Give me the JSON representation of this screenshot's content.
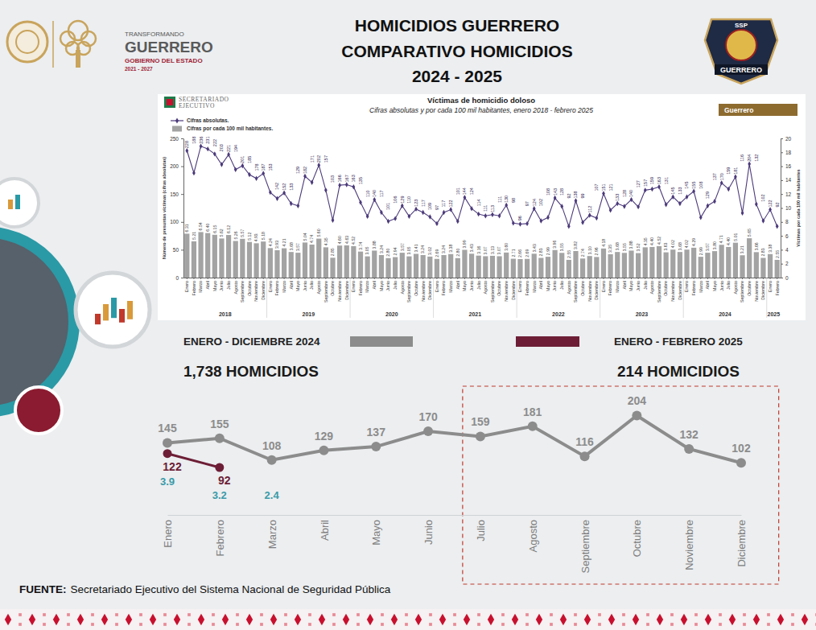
{
  "header": {
    "title_lines": [
      "HOMICIDIOS GUERRERO",
      "COMPARATIVO HOMICIDIOS",
      "2024 - 2025"
    ],
    "logo_left": [
      "TRANSFORMANDO",
      "GUERRERO",
      "GOBIERNO DEL ESTADO",
      "2021 - 2027"
    ],
    "logo_right": [
      "SSP",
      "GUERRERO"
    ]
  },
  "chart_data": [
    {
      "type": "line",
      "categories": [
        "Enero",
        "Febrero",
        "Marzo",
        "Abril",
        "Mayo",
        "Junio",
        "Julio",
        "Agosto",
        "Septiembre",
        "Octubre",
        "Noviembre",
        "Diciembre"
      ],
      "series": [
        {
          "name": "ENERO - DICIEMBRE 2024",
          "color": "#8c8c8c",
          "marker": "circle",
          "values": [
            145,
            155,
            108,
            129,
            137,
            170,
            159,
            181,
            116,
            204,
            132,
            102
          ],
          "total_label": "1,738 HOMICIDIOS"
        },
        {
          "name": "ENERO - FEBRERO 2025",
          "color": "#6d1e36",
          "marker": "circle",
          "values": [
            122,
            92,
            null,
            null,
            null,
            null,
            null,
            null,
            null,
            null,
            null,
            null
          ],
          "total_label": "214 HOMICIDIOS"
        }
      ],
      "annotations": [
        {
          "category": "Enero",
          "value": 3.9
        },
        {
          "category": "Febrero",
          "value": 3.2
        },
        {
          "category": "Marzo",
          "value": 2.4
        }
      ],
      "highlight": [
        "Julio",
        "Diciembre"
      ],
      "ylim": [
        0,
        250
      ],
      "tick_labels": "x",
      "data_labels": true,
      "legend": "top"
    },
    {
      "type": "bar",
      "title": "Víctimas de homicidio doloso",
      "subtitle": "Cifras absolutas y por cada 100 mil habitantes, enero 2018 - febrero 2025",
      "source_logo": [
        "SECRETARIADO",
        "EJECUTIVO"
      ],
      "tab_label": "Guerrero",
      "ylabel": "Número de presuntas víctimas (cifras absolutas)",
      "y2label": "Víctimas por cada 100 mil habitantes",
      "categories": [
        "Enero",
        "Febrero",
        "Marzo",
        "Abril",
        "Mayo",
        "Junio",
        "Julio",
        "Agosto",
        "Septiembre",
        "Octubre",
        "Noviembre",
        "Diciembre",
        "Enero",
        "Febrero",
        "Marzo",
        "Abril",
        "Mayo",
        "Junio",
        "Julio",
        "Agosto",
        "Septiembre",
        "Octubre",
        "Noviembre",
        "Diciembre",
        "Enero",
        "Febrero",
        "Marzo",
        "Abril",
        "Mayo",
        "Junio",
        "Julio",
        "Agosto",
        "Septiembre",
        "Octubre",
        "Noviembre",
        "Diciembre",
        "Enero",
        "Febrero",
        "Marzo",
        "Abril",
        "Mayo",
        "Junio",
        "Julio",
        "Agosto",
        "Septiembre",
        "Octubre",
        "Noviembre",
        "Diciembre",
        "Enero",
        "Febrero",
        "Marzo",
        "Abril",
        "Mayo",
        "Junio",
        "Julio",
        "Agosto",
        "Septiembre",
        "Octubre",
        "Noviembre",
        "Diciembre",
        "Enero",
        "Febrero",
        "Marzo",
        "Abril",
        "Mayo",
        "Junio",
        "Julio",
        "Agosto",
        "Septiembre",
        "Octubre",
        "Noviembre",
        "Diciembre",
        "Enero",
        "Febrero",
        "Marzo",
        "Abril",
        "Mayo",
        "Junio",
        "Julio",
        "Agosto",
        "Septiembre",
        "Octubre",
        "Noviembre",
        "Diciembre",
        "Enero",
        "Febrero"
      ],
      "category_years": [
        "2018",
        "2018",
        "2018",
        "2018",
        "2018",
        "2018",
        "2018",
        "2018",
        "2018",
        "2018",
        "2018",
        "2018",
        "2019",
        "2019",
        "2019",
        "2019",
        "2019",
        "2019",
        "2019",
        "2019",
        "2019",
        "2019",
        "2019",
        "2019",
        "2020",
        "2020",
        "2020",
        "2020",
        "2020",
        "2020",
        "2020",
        "2020",
        "2020",
        "2020",
        "2020",
        "2020",
        "2021",
        "2021",
        "2021",
        "2021",
        "2021",
        "2021",
        "2021",
        "2021",
        "2021",
        "2021",
        "2021",
        "2021",
        "2022",
        "2022",
        "2022",
        "2022",
        "2022",
        "2022",
        "2022",
        "2022",
        "2022",
        "2022",
        "2022",
        "2022",
        "2023",
        "2023",
        "2023",
        "2023",
        "2023",
        "2023",
        "2023",
        "2023",
        "2023",
        "2023",
        "2023",
        "2023",
        "2024",
        "2024",
        "2024",
        "2024",
        "2024",
        "2024",
        "2024",
        "2024",
        "2024",
        "2024",
        "2024",
        "2024",
        "2025",
        "2025"
      ],
      "series": [
        {
          "name": "Cifras por cada 100 mil habitantes.",
          "type": "bar",
          "axis": "y2",
          "color": "#a3a3a3",
          "values": [
            6.31,
            5.21,
            6.54,
            6.4,
            6.15,
            5.62,
            6.12,
            5.26,
            5.57,
            5.12,
            4.93,
            5.18,
            4.24,
            3.93,
            4.21,
            3.68,
            3.57,
            5.04,
            4.74,
            5.6,
            4.35,
            2.85,
            4.6,
            4.63,
            4.52,
            3.74,
            3.05,
            3.88,
            3.24,
            2.8,
            2.94,
            3.57,
            3.05,
            3.41,
            3.24,
            3.02,
            2.69,
            3.24,
            3.38,
            2.8,
            3.99,
            3.43,
            3.16,
            3.07,
            3.13,
            3.07,
            3.6,
            2.71,
            2.66,
            2.69,
            3.43,
            2.83,
            2.99,
            3.96,
            3.55,
            2.55,
            3.82,
            2.74,
            3.1,
            2.96,
            4.18,
            3.35,
            3.68,
            3.55,
            3.88,
            3.52,
            4.35,
            4.4,
            4.52,
            3.63,
            4.02,
            3.68,
            4.02,
            4.29,
            2.99,
            3.57,
            3.8,
            4.71,
            4.4,
            5.01,
            3.21,
            5.65,
            3.66,
            2.83,
            3.38,
            2.55
          ],
          "value_labels": [
            "6.31",
            "5.21",
            "6.54",
            "6.40",
            "6.15",
            "5.62",
            "6.12",
            "5.26",
            "5.57",
            "5.12",
            "4.93",
            "5.18",
            "4.24",
            "3.93",
            "4.21",
            "3.68",
            "3.57",
            "5.04",
            "4.74",
            "5.60",
            "4.35",
            "2.85",
            "4.60",
            "4.63",
            "4.52",
            "3.74",
            "3.05",
            "3.88",
            "3.24",
            "2.80",
            "2.94",
            "3.57",
            "3.05",
            "3.41",
            "3.24",
            "3.02",
            "2.69",
            "3.24",
            "3.38",
            "2.80",
            "3.99",
            "3.43",
            "3.16",
            "3.07",
            "3.13",
            "3.07",
            "3.60",
            "2.71",
            "2.66",
            "2.69",
            "3.43",
            "2.83",
            "2.99",
            "3.96",
            "3.55",
            "2.55",
            "3.82",
            "2.74",
            "3.10",
            "2.96",
            "4.18",
            "3.35",
            "3.68",
            "3.55",
            "3.88",
            "3.52",
            "4.35",
            "4.40",
            "4.52",
            "3.63",
            "4.02",
            "3.68",
            "4.02",
            "4.29",
            "2.99",
            "3.57",
            "3.80",
            "4.71",
            "4.40",
            "5.01",
            "3.21",
            "5.65",
            "3.66",
            "2.83",
            "3.38",
            "2.55"
          ]
        },
        {
          "name": "Cifras absolutas.",
          "type": "line",
          "color": "#4b3a7a",
          "marker": "diamond",
          "values": [
            228,
            188,
            236,
            231,
            222,
            203,
            221,
            194,
            201,
            185,
            178,
            187,
            153,
            142,
            152,
            133,
            129,
            182,
            171,
            202,
            157,
            103,
            166,
            167,
            163,
            135,
            110,
            140,
            117,
            101,
            106,
            129,
            110,
            123,
            117,
            109,
            97,
            117,
            122,
            101,
            144,
            124,
            114,
            111,
            113,
            111,
            130,
            98,
            96,
            97,
            124,
            102,
            108,
            143,
            128,
            92,
            138,
            99,
            112,
            107,
            151,
            121,
            133,
            128,
            140,
            127,
            157,
            159,
            163,
            131,
            145,
            133,
            145,
            155,
            108,
            129,
            137,
            170,
            159,
            181,
            116,
            204,
            132,
            102,
            122,
            92
          ]
        }
      ],
      "ylim": [
        0,
        250
      ],
      "yticks": [
        0,
        50,
        100,
        150,
        200,
        250
      ],
      "y2lim": [
        0,
        20
      ],
      "y2ticks": [
        0,
        2,
        4,
        6,
        8,
        10,
        12,
        14,
        16,
        18,
        20
      ],
      "data_labels": true,
      "legend": "top-left"
    }
  ],
  "footer": {
    "label": "FUENTE:",
    "text": "Secretariado Ejecutivo del Sistema Nacional de Seguridad Pública"
  }
}
